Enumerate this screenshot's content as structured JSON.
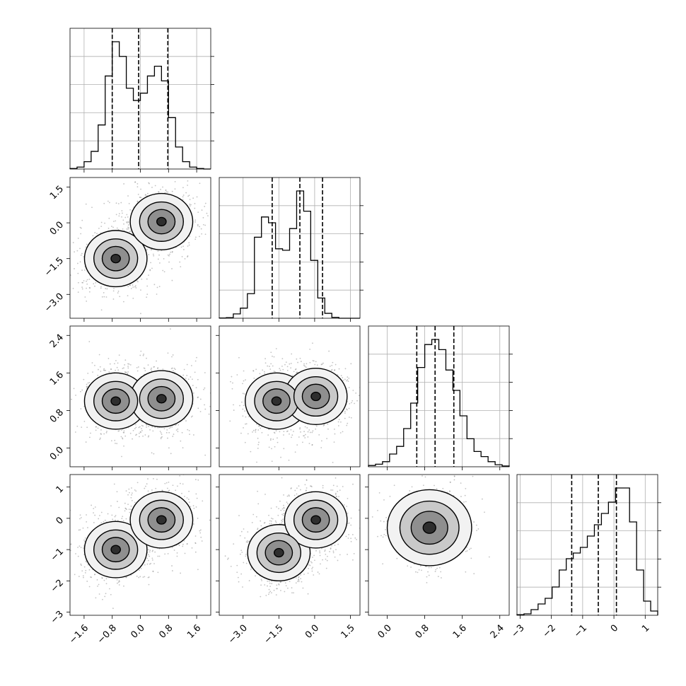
{
  "chart_data": {
    "type": "corner",
    "title": "",
    "dimensions": 4,
    "variables": [
      {
        "index": 0,
        "ticks": [
          "−1.6",
          "−0.8",
          "0.0",
          "0.8",
          "1.6"
        ],
        "tick_values": [
          -1.6,
          -0.8,
          0.0,
          0.8,
          1.6
        ],
        "range": [
          -2.0,
          2.0
        ],
        "quantiles": [
          -0.8,
          -0.05,
          0.78
        ]
      },
      {
        "index": 1,
        "ticks": [
          "−3.0",
          "−1.5",
          "0.0",
          "1.5"
        ],
        "tick_values": [
          -3.0,
          -1.5,
          0.0,
          1.5
        ],
        "range": [
          -4.0,
          1.9
        ],
        "quantiles": [
          -1.78,
          -0.62,
          0.33
        ]
      },
      {
        "index": 2,
        "ticks": [
          "0.0",
          "0.8",
          "1.6",
          "2.4"
        ],
        "tick_values": [
          0.0,
          0.8,
          1.6,
          2.4
        ],
        "range": [
          -0.4,
          2.6
        ],
        "quantiles": [
          0.63,
          1.02,
          1.42
        ]
      },
      {
        "index": 3,
        "ticks": [
          "−3",
          "−2",
          "−1",
          "0",
          "1"
        ],
        "tick_values": [
          -3,
          -2,
          -1,
          0,
          1
        ],
        "range": [
          -3.1,
          1.4
        ],
        "quantiles": [
          -1.35,
          -0.5,
          0.08
        ]
      }
    ],
    "histograms": [
      {
        "variable": 0,
        "bin_start": -2.0,
        "bin_width": 0.2,
        "counts": [
          2,
          8,
          30,
          72,
          180,
          380,
          520,
          460,
          330,
          280,
          310,
          380,
          420,
          360,
          210,
          90,
          30,
          8,
          2,
          0
        ]
      },
      {
        "variable": 1,
        "bin_start": -4.0,
        "bin_width": 0.295,
        "counts": [
          1,
          2,
          15,
          35,
          85,
          280,
          350,
          330,
          240,
          235,
          310,
          440,
          370,
          200,
          70,
          17,
          3,
          0,
          0,
          0
        ]
      },
      {
        "variable": 2,
        "bin_start": -0.4,
        "bin_width": 0.15,
        "counts": [
          5,
          10,
          20,
          50,
          80,
          150,
          250,
          390,
          480,
          500,
          460,
          380,
          300,
          200,
          110,
          60,
          40,
          20,
          8,
          3
        ]
      },
      {
        "variable": 3,
        "bin_start": -3.1,
        "bin_width": 0.225,
        "counts": [
          2,
          5,
          20,
          40,
          60,
          100,
          160,
          200,
          220,
          240,
          280,
          320,
          360,
          400,
          450,
          450,
          330,
          160,
          50,
          15
        ]
      }
    ],
    "histogram_grid": true,
    "quantile_line_style": "dashed",
    "joint_plots": [
      {
        "x_var": 0,
        "y_var": 1,
        "modes": [
          [
            -0.7,
            -1.5
          ],
          [
            0.6,
            0.05
          ]
        ]
      },
      {
        "x_var": 0,
        "y_var": 2,
        "modes": [
          [
            -0.7,
            1.0
          ],
          [
            0.6,
            1.05
          ]
        ]
      },
      {
        "x_var": 1,
        "y_var": 2,
        "modes": [
          [
            -1.6,
            1.0
          ],
          [
            0.05,
            1.1
          ]
        ]
      },
      {
        "x_var": 0,
        "y_var": 3,
        "modes": [
          [
            -0.7,
            -1.0
          ],
          [
            0.6,
            -0.05
          ]
        ]
      },
      {
        "x_var": 1,
        "y_var": 3,
        "modes": [
          [
            -1.5,
            -1.1
          ],
          [
            0.05,
            -0.05
          ]
        ]
      },
      {
        "x_var": 2,
        "y_var": 3,
        "modes": [
          [
            0.9,
            -0.3
          ]
        ]
      }
    ]
  }
}
